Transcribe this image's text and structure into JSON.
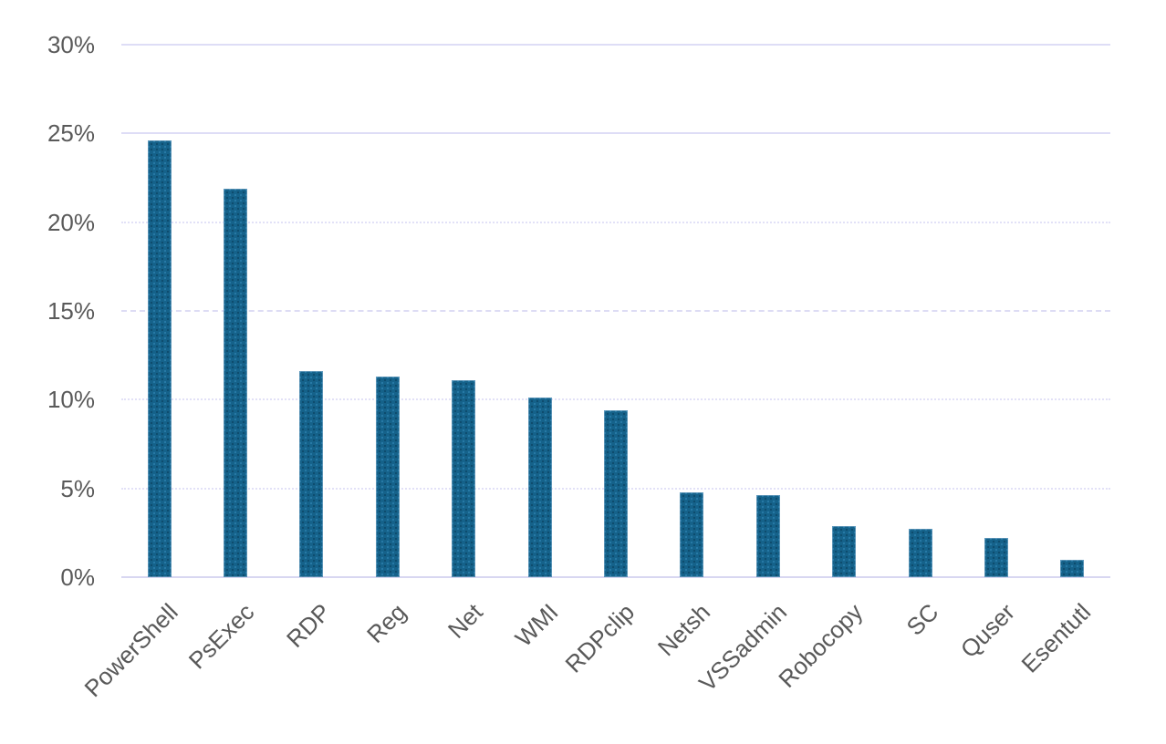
{
  "chart_data": {
    "type": "bar",
    "title": "",
    "xlabel": "",
    "ylabel": "",
    "categories": [
      "PowerShell",
      "PsExec",
      "RDP",
      "Reg",
      "Net",
      "WMI",
      "RDPclip",
      "Netsh",
      "VSSadmin",
      "Robocopy",
      "SC",
      "Quser",
      "Esentutl"
    ],
    "values": [
      24.6,
      21.9,
      11.6,
      11.3,
      11.1,
      10.1,
      9.4,
      4.8,
      4.6,
      2.9,
      2.7,
      2.2,
      1.0
    ],
    "value_unit": "%",
    "ylim": [
      0,
      30
    ],
    "y_tick_values": [
      0,
      5,
      10,
      15,
      20,
      25,
      30
    ],
    "y_tick_labels": [
      "0%",
      "5%",
      "10%",
      "15%",
      "20%",
      "25%",
      "30%"
    ],
    "grid": true,
    "legend_position": "none",
    "colors": {
      "bar_fill": "#15628a",
      "bar_texture_dark": "#0d4a68",
      "bar_texture_light": "#2e86b8",
      "gridline": "#deddf6",
      "axis_line": "#d8d7f1",
      "tick_label": "#5a5a5a"
    }
  }
}
